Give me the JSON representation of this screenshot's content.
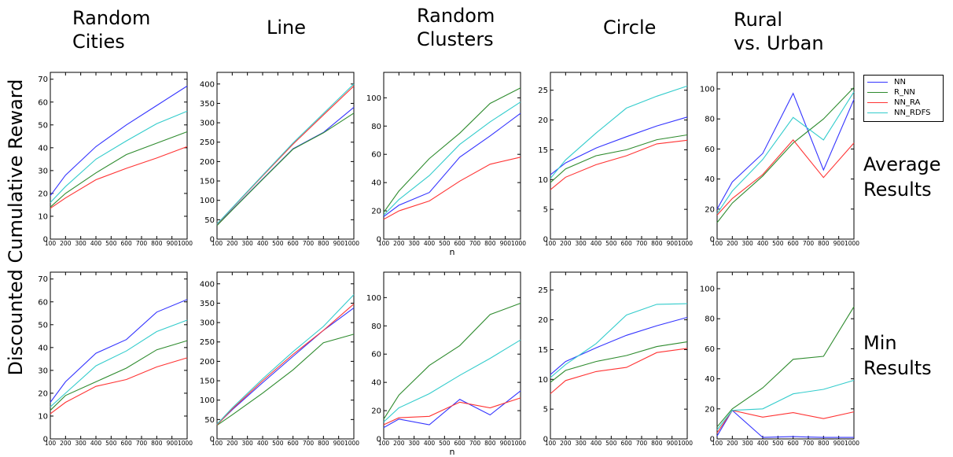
{
  "figure": {
    "ylabel": "Discounted Cumulative Reward",
    "column_titles": [
      "Random\nCities",
      "Line",
      "Random\nClusters",
      "Circle",
      "Rural\nvs. Urban"
    ],
    "row_labels": [
      "Average\nResults",
      "Min\nResults"
    ],
    "colors": {
      "NN": "#3333ff",
      "R_NN": "#2e8b2e",
      "NN_RA": "#ff3333",
      "NN_RDFS": "#33cccc"
    }
  },
  "chart_data": {
    "type": "line",
    "x": [
      100,
      200,
      400,
      600,
      800,
      1000
    ],
    "xticks": [
      "100",
      "200",
      "300",
      "400",
      "500",
      "600",
      "700",
      "800",
      "9001000"
    ],
    "series_names": [
      "NN",
      "R_NN",
      "NN_RA",
      "NN_RDFS"
    ],
    "panels": [
      {
        "row": 0,
        "col": 0,
        "ylim": [
          0,
          73
        ],
        "yticks": [
          0,
          10,
          20,
          30,
          40,
          50,
          60,
          70
        ],
        "xlabel": "",
        "series": [
          {
            "name": "NN",
            "values": [
              19,
              28,
              40.5,
              50,
              58.5,
              67
            ]
          },
          {
            "name": "R_NN",
            "values": [
              14,
              20,
              29,
              37,
              42,
              47
            ]
          },
          {
            "name": "NN_RA",
            "values": [
              13.5,
              18,
              26,
              31,
              35.5,
              40.5
            ]
          },
          {
            "name": "NN_RDFS",
            "values": [
              16,
              23,
              35,
              43,
              50.5,
              56
            ]
          }
        ]
      },
      {
        "row": 0,
        "col": 1,
        "ylim": [
          0,
          430
        ],
        "yticks": [
          0,
          50,
          100,
          150,
          200,
          250,
          300,
          350,
          400
        ],
        "xlabel": "",
        "series": [
          {
            "name": "NN",
            "values": [
              36,
              76,
              155,
              233,
              275,
              340
            ]
          },
          {
            "name": "R_NN",
            "values": [
              35,
              75,
              154,
              232,
              274,
              325
            ]
          },
          {
            "name": "NN_RA",
            "values": [
              38,
              80,
              163,
              245,
              320,
              395
            ]
          },
          {
            "name": "NN_RDFS",
            "values": [
              39,
              81,
              165,
              248,
              324,
              400
            ]
          }
        ]
      },
      {
        "row": 0,
        "col": 2,
        "ylim": [
          0,
          118
        ],
        "yticks": [
          0,
          20,
          40,
          60,
          80,
          100
        ],
        "xlabel": "n",
        "series": [
          {
            "name": "NN",
            "values": [
              16,
              24,
              33,
              58,
              73,
              89
            ]
          },
          {
            "name": "R_NN",
            "values": [
              19,
              34,
              57,
              75,
              96,
              107
            ]
          },
          {
            "name": "NN_RA",
            "values": [
              14,
              20,
              27,
              41,
              53,
              58
            ]
          },
          {
            "name": "NN_RDFS",
            "values": [
              17,
              28,
              45,
              67,
              83,
              97
            ]
          }
        ]
      },
      {
        "row": 0,
        "col": 3,
        "ylim": [
          0,
          28
        ],
        "yticks": [
          0,
          5,
          10,
          15,
          20,
          25
        ],
        "xlabel": "",
        "series": [
          {
            "name": "NN",
            "values": [
              10.8,
              12.8,
              15.3,
              17.2,
              19.0,
              20.5
            ]
          },
          {
            "name": "R_NN",
            "values": [
              9.5,
              11.8,
              14.0,
              15.0,
              16.7,
              17.5
            ]
          },
          {
            "name": "NN_RA",
            "values": [
              8.3,
              10.4,
              12.5,
              14.0,
              16.0,
              16.6
            ]
          },
          {
            "name": "NN_RDFS",
            "values": [
              10.2,
              13.3,
              17.8,
              22.0,
              24.0,
              25.7
            ]
          }
        ]
      },
      {
        "row": 0,
        "col": 4,
        "ylim": [
          0,
          111
        ],
        "yticks": [
          0,
          20,
          40,
          60,
          80,
          100
        ],
        "xlabel": "",
        "series": [
          {
            "name": "NN",
            "values": [
              20,
              38,
              57,
              97,
              46,
              93
            ]
          },
          {
            "name": "R_NN",
            "values": [
              11,
              24,
              42,
              64,
              80,
              101
            ]
          },
          {
            "name": "NN_RA",
            "values": [
              16,
              27,
              43,
              66,
              41,
              64
            ]
          },
          {
            "name": "NN_RDFS",
            "values": [
              17,
              32,
              53,
              81,
              66,
              98
            ]
          }
        ]
      },
      {
        "row": 1,
        "col": 0,
        "ylim": [
          0,
          73
        ],
        "yticks": [
          0,
          10,
          20,
          30,
          40,
          50,
          60,
          70
        ],
        "xlabel": "",
        "series": [
          {
            "name": "NN",
            "values": [
              16,
              25,
              37.5,
              43.5,
              55.5,
              61
            ]
          },
          {
            "name": "R_NN",
            "values": [
              12.5,
              19,
              25,
              31,
              39,
              43
            ]
          },
          {
            "name": "NN_RA",
            "values": [
              11,
              16,
              23,
              26,
              31.5,
              35.5
            ]
          },
          {
            "name": "NN_RDFS",
            "values": [
              14,
              20,
              32,
              38.5,
              47,
              52
            ]
          }
        ]
      },
      {
        "row": 1,
        "col": 1,
        "ylim": [
          0,
          430
        ],
        "yticks": [
          0,
          50,
          100,
          150,
          200,
          250,
          300,
          350,
          400
        ],
        "xlabel": "",
        "series": [
          {
            "name": "NN",
            "values": [
              37,
              75,
              145,
              213,
              280,
              338
            ]
          },
          {
            "name": "R_NN",
            "values": [
              35,
              62,
              118,
              178,
              248,
              270
            ]
          },
          {
            "name": "NN_RA",
            "values": [
              36,
              77,
              150,
              218,
              280,
              348
            ]
          },
          {
            "name": "NN_RDFS",
            "values": [
              38,
              80,
              155,
              225,
              290,
              372
            ]
          }
        ]
      },
      {
        "row": 1,
        "col": 2,
        "ylim": [
          0,
          118
        ],
        "yticks": [
          0,
          20,
          40,
          60,
          80,
          100
        ],
        "xlabel": "n",
        "series": [
          {
            "name": "NN",
            "values": [
              8,
              14,
              10,
              28,
              17,
              34
            ]
          },
          {
            "name": "R_NN",
            "values": [
              14,
              31,
              52,
              66,
              88,
              96
            ]
          },
          {
            "name": "NN_RA",
            "values": [
              10,
              15,
              16,
              26,
              22,
              29
            ]
          },
          {
            "name": "NN_RDFS",
            "values": [
              12,
              22,
              32,
              45,
              57,
              70
            ]
          }
        ]
      },
      {
        "row": 1,
        "col": 3,
        "ylim": [
          0,
          28
        ],
        "yticks": [
          0,
          5,
          10,
          15,
          20,
          25
        ],
        "xlabel": "",
        "series": [
          {
            "name": "NN",
            "values": [
              10.8,
              13.0,
              15.3,
              17.4,
              19.0,
              20.4
            ]
          },
          {
            "name": "R_NN",
            "values": [
              9.5,
              11.5,
              13.0,
              14.0,
              15.5,
              16.3
            ]
          },
          {
            "name": "NN_RA",
            "values": [
              7.6,
              9.8,
              11.3,
              12.0,
              14.5,
              15.2
            ]
          },
          {
            "name": "NN_RDFS",
            "values": [
              10.3,
              12.5,
              16.0,
              20.8,
              22.6,
              22.7
            ]
          }
        ]
      },
      {
        "row": 1,
        "col": 4,
        "ylim": [
          0,
          111
        ],
        "yticks": [
          0,
          20,
          40,
          60,
          80,
          100
        ],
        "xlabel": "",
        "series": [
          {
            "name": "NN",
            "values": [
              2,
              19,
              1,
              1.5,
              1,
              1
            ]
          },
          {
            "name": "R_NN",
            "values": [
              8,
              20,
              34,
              53,
              55,
              88
            ]
          },
          {
            "name": "NN_RA",
            "values": [
              4,
              19,
              14.5,
              17.5,
              13.5,
              18
            ]
          },
          {
            "name": "NN_RDFS",
            "values": [
              6,
              19,
              20,
              30,
              33,
              39
            ]
          }
        ]
      }
    ]
  }
}
